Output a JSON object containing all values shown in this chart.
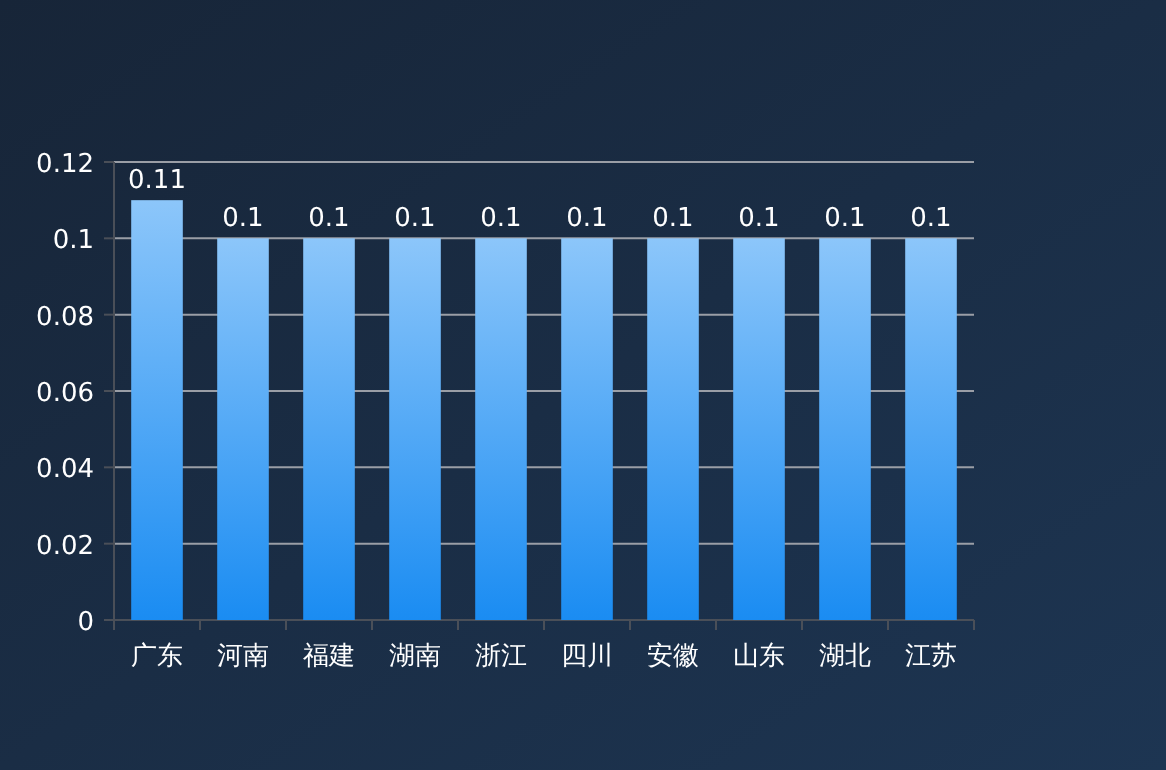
{
  "chart_data": {
    "type": "bar",
    "categories": [
      "广东",
      "河南",
      "福建",
      "湖南",
      "浙江",
      "四川",
      "安徽",
      "山东",
      "湖北",
      "江苏"
    ],
    "values": [
      0.11,
      0.1,
      0.1,
      0.1,
      0.1,
      0.1,
      0.1,
      0.1,
      0.1,
      0.1
    ],
    "color": "#1a8cf2",
    "ylim": [
      0,
      0.12
    ],
    "yticks": [
      0,
      0.02,
      0.04,
      0.06,
      0.08,
      0.1,
      0.12
    ],
    "grid": "y",
    "data_labels": true
  }
}
